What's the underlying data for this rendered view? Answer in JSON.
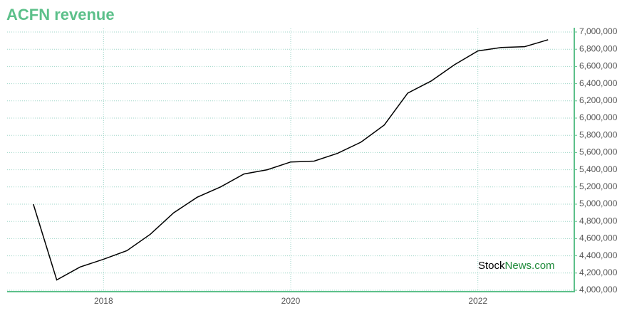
{
  "chart_data": {
    "type": "line",
    "title": "ACFN revenue",
    "x": [
      2017.25,
      2017.5,
      2017.75,
      2018,
      2018.25,
      2018.5,
      2018.75,
      2019,
      2019.25,
      2019.5,
      2019.75,
      2020,
      2020.25,
      2020.5,
      2020.75,
      2021,
      2021.25,
      2021.5,
      2021.75,
      2022,
      2022.25,
      2022.5,
      2022.75
    ],
    "values": [
      5000000,
      4120000,
      4270000,
      4360000,
      4460000,
      4650000,
      4900000,
      5080000,
      5200000,
      5350000,
      5400000,
      5490000,
      5500000,
      5590000,
      5720000,
      5920000,
      6290000,
      6430000,
      6620000,
      6780000,
      6820000,
      6830000,
      6910000
    ],
    "color": "#000000",
    "xlim": [
      2016.97,
      2023.03
    ],
    "xticks": [
      2018,
      2020,
      2022
    ],
    "ylim": [
      4000000,
      7000000
    ],
    "yticks": [
      {
        "value": 4000000,
        "label": "4,000,000"
      },
      {
        "value": 4200000,
        "label": "4,200,000"
      },
      {
        "value": 4400000,
        "label": "4,400,000"
      },
      {
        "value": 4600000,
        "label": "4,600,000"
      },
      {
        "value": 4800000,
        "label": "4,800,000"
      },
      {
        "value": 5000000,
        "label": "5,000,000"
      },
      {
        "value": 5200000,
        "label": "5,200,000"
      },
      {
        "value": 5400000,
        "label": "5,400,000"
      },
      {
        "value": 5600000,
        "label": "5,600,000"
      },
      {
        "value": 5800000,
        "label": "5,800,000"
      },
      {
        "value": 6000000,
        "label": "6,000,000"
      },
      {
        "value": 6200000,
        "label": "6,200,000"
      },
      {
        "value": 6400000,
        "label": "6,400,000"
      },
      {
        "value": 6600000,
        "label": "6,600,000"
      },
      {
        "value": 6800000,
        "label": "6,800,000"
      },
      {
        "value": 7000000,
        "label": "7,000,000"
      }
    ],
    "grid": true,
    "watermark": [
      "Stock",
      "News.com"
    ]
  }
}
